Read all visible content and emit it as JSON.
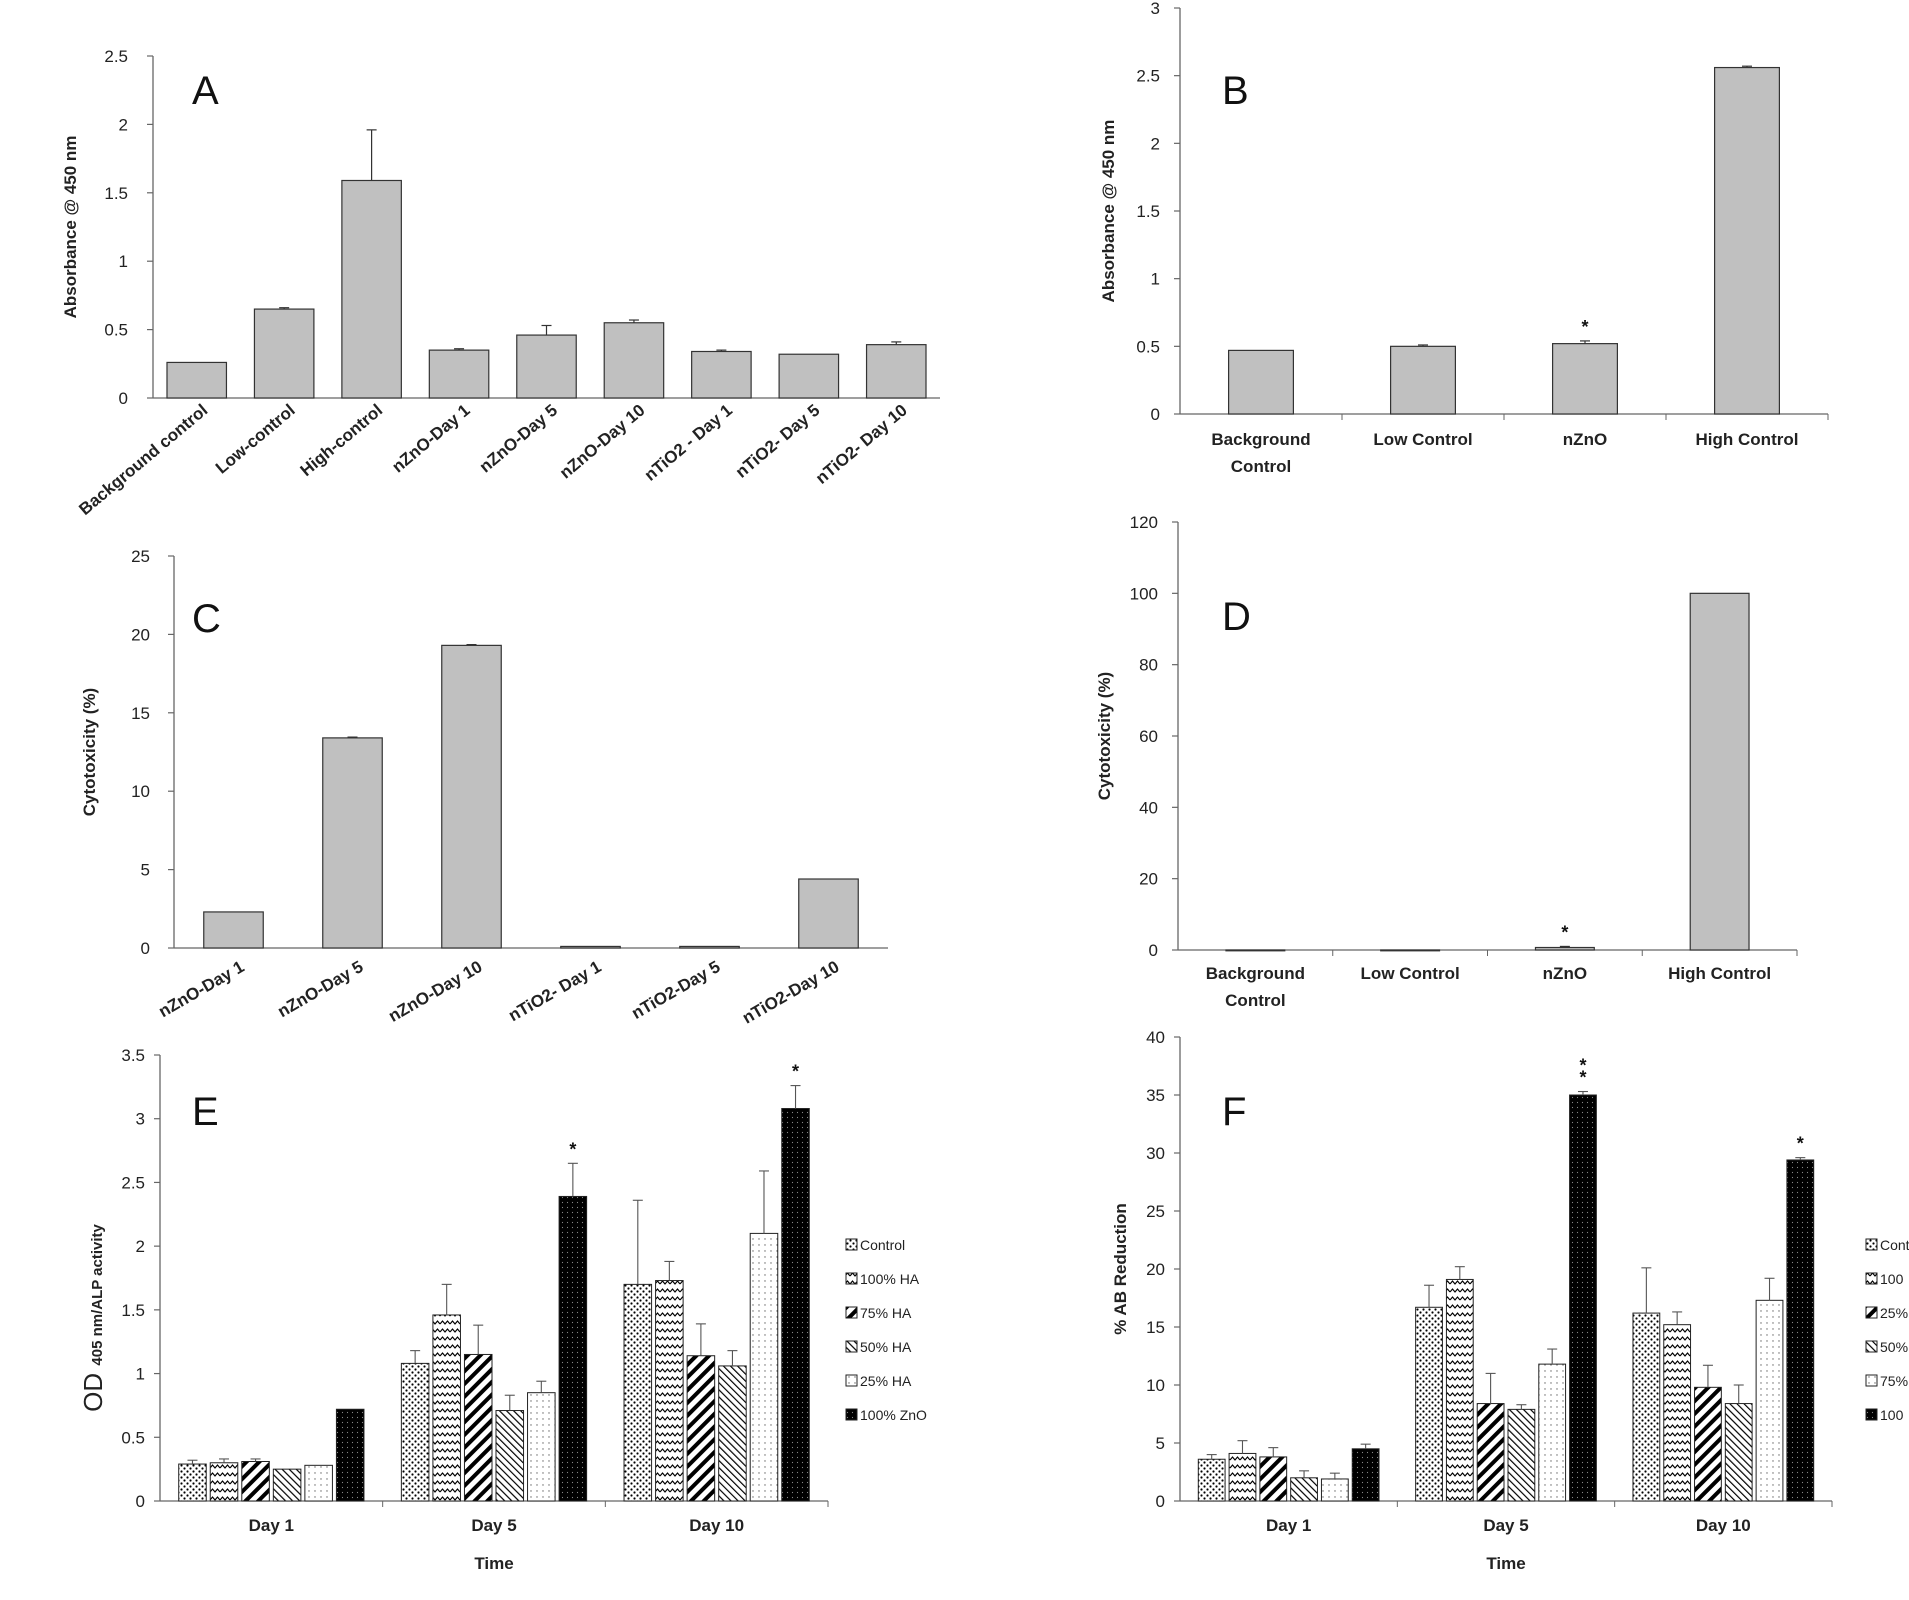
{
  "chart_data": [
    {
      "panel": "A",
      "type": "bar",
      "ylabel": "Absorbance @ 450 nm",
      "ylim": [
        0,
        2.5
      ],
      "yticks": [
        "0",
        "0.5",
        "1",
        "1.5",
        "2",
        "2.5"
      ],
      "categories": [
        "Background control",
        "Low-control",
        "High-control",
        "nZnO-Day 1",
        "nZnO-Day 5",
        "nZnO-Day 10",
        "nTiO2 - Day 1",
        "nTiO2- Day 5",
        "nTiO2- Day 10"
      ],
      "values": [
        0.26,
        0.65,
        1.59,
        0.35,
        0.46,
        0.55,
        0.34,
        0.32,
        0.39
      ],
      "errors": [
        0,
        0.01,
        0.37,
        0.01,
        0.07,
        0.02,
        0.01,
        0,
        0.02
      ],
      "colors": {
        "bar": "#c0c0c0",
        "edge": "#333333"
      }
    },
    {
      "panel": "B",
      "type": "bar",
      "ylabel": "Absorbance @ 450 nm",
      "ylim": [
        0,
        3
      ],
      "yticks": [
        "0",
        "0.5",
        "1",
        "1.5",
        "2",
        "2.5",
        "3"
      ],
      "categories": [
        "Background Control",
        "Low Control",
        "nZnO",
        "High Control"
      ],
      "values": [
        0.47,
        0.5,
        0.52,
        2.56
      ],
      "errors": [
        0,
        0.01,
        0.02,
        0.01
      ],
      "annotations": [
        {
          "category": "nZnO",
          "text": "*"
        }
      ],
      "colors": {
        "bar": "#c0c0c0",
        "edge": "#333333"
      }
    },
    {
      "panel": "C",
      "type": "bar",
      "ylabel": "Cytotoxicity (%)",
      "ylim": [
        0,
        25
      ],
      "yticks": [
        "0",
        "5",
        "10",
        "15",
        "20",
        "25"
      ],
      "categories": [
        "nZnO-Day 1",
        "nZnO-Day 5",
        "nZnO-Day 10",
        "nTiO2- Day 1",
        "nTiO2-Day 5",
        "nTiO2-Day 10"
      ],
      "values": [
        2.3,
        13.4,
        19.3,
        0.1,
        0.1,
        4.4
      ],
      "errors": [
        0,
        0.05,
        0.05,
        0,
        0,
        0
      ],
      "colors": {
        "bar": "#c0c0c0",
        "edge": "#333333"
      }
    },
    {
      "panel": "D",
      "type": "bar",
      "ylabel": "Cytotoxicity (%)",
      "ylim": [
        0,
        120
      ],
      "yticks": [
        "0",
        "20",
        "40",
        "60",
        "80",
        "100",
        "120"
      ],
      "categories": [
        "Background Control",
        "Low Control",
        "nZnO",
        "High Control"
      ],
      "values": [
        0,
        0,
        0.7,
        100
      ],
      "errors": [
        0,
        0,
        0.3,
        0
      ],
      "annotations": [
        {
          "category": "nZnO",
          "text": "*"
        }
      ],
      "colors": {
        "bar": "#c0c0c0",
        "edge": "#333333"
      }
    },
    {
      "panel": "E",
      "type": "bar",
      "ylabel_main": "OD",
      "ylabel_sub": "405 nm/ALP activity",
      "xlabel": "Time",
      "ylim": [
        0,
        3.5
      ],
      "yticks": [
        "0",
        "0.5",
        "1",
        "1.5",
        "2",
        "2.5",
        "3",
        "3.5"
      ],
      "categories": [
        "Day 1",
        "Day 5",
        "Day 10"
      ],
      "series": [
        {
          "name": "Control",
          "values": [
            0.29,
            1.08,
            1.7
          ],
          "errors": [
            0.03,
            0.1,
            0.66
          ]
        },
        {
          "name": "100% HA",
          "values": [
            0.3,
            1.46,
            1.73
          ],
          "errors": [
            0.03,
            0.24,
            0.15
          ]
        },
        {
          "name": "75% HA",
          "values": [
            0.31,
            1.15,
            1.14
          ],
          "errors": [
            0.02,
            0.23,
            0.25
          ]
        },
        {
          "name": "50% HA",
          "values": [
            0.25,
            0.71,
            1.06
          ],
          "errors": [
            0,
            0.12,
            0.12
          ]
        },
        {
          "name": "25% HA",
          "values": [
            0.28,
            0.85,
            2.1
          ],
          "errors": [
            0,
            0.09,
            0.49
          ]
        },
        {
          "name": "100% ZnO",
          "values": [
            0.72,
            2.39,
            3.08
          ],
          "errors": [
            0,
            0.26,
            0.18
          ]
        }
      ],
      "annotations": [
        {
          "category": "Day 5",
          "series": "100% ZnO",
          "text": "*"
        },
        {
          "category": "Day 10",
          "series": "100% ZnO",
          "text": "*"
        }
      ]
    },
    {
      "panel": "F",
      "type": "bar",
      "ylabel": "% AB Reduction",
      "xlabel": "Time",
      "ylim": [
        0,
        40
      ],
      "yticks": [
        "0",
        "5",
        "10",
        "15",
        "20",
        "25",
        "30",
        "35",
        "40"
      ],
      "categories": [
        "Day 1",
        "Day 5",
        "Day 10"
      ],
      "series": [
        {
          "name": "Cont",
          "values": [
            3.6,
            16.7,
            16.2
          ],
          "errors": [
            0.4,
            1.9,
            3.9
          ]
        },
        {
          "name": "100",
          "values": [
            4.1,
            19.1,
            15.2
          ],
          "errors": [
            1.1,
            1.1,
            1.1
          ]
        },
        {
          "name": "25%",
          "values": [
            3.8,
            8.4,
            9.8
          ],
          "errors": [
            0.8,
            2.6,
            1.9
          ]
        },
        {
          "name": "50%",
          "values": [
            2.0,
            7.9,
            8.4
          ],
          "errors": [
            0.6,
            0.4,
            1.6
          ]
        },
        {
          "name": "75%",
          "values": [
            1.9,
            11.8,
            17.3
          ],
          "errors": [
            0.5,
            1.3,
            1.9
          ]
        },
        {
          "name": "100",
          "values": [
            4.5,
            35.0,
            29.4
          ],
          "errors": [
            0.4,
            0.3,
            0.2
          ]
        }
      ],
      "annotations": [
        {
          "category": "Day 5",
          "series_index": 5,
          "text": "**"
        },
        {
          "category": "Day 10",
          "series_index": 5,
          "text": "*"
        }
      ]
    }
  ]
}
